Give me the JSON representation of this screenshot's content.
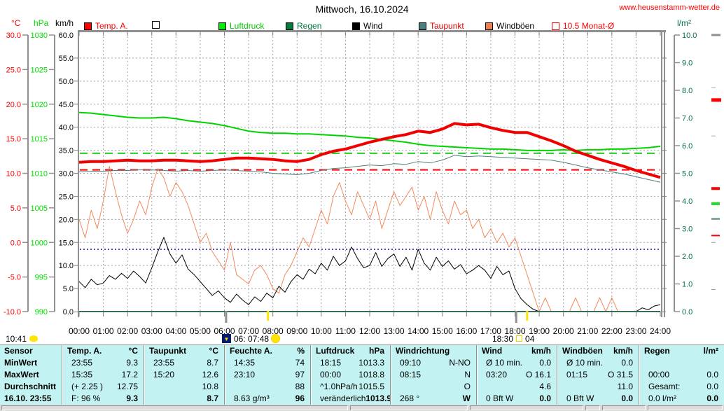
{
  "header": {
    "title": "Mittwoch, 16.10.2024",
    "url": "www.heusenstamm-wetter.de"
  },
  "legend": [
    {
      "label": "Temp. A.",
      "label_color": "#ff0000",
      "swatch_fill": "#ff0000",
      "swatch_border": "#000000"
    },
    {
      "label": "",
      "label_color": "#000000",
      "swatch_fill": "#ffffff",
      "swatch_border": "#000000"
    },
    {
      "label": "Luftdruck",
      "label_color": "#00cc00",
      "swatch_fill": "#00ee00",
      "swatch_border": "#000000"
    },
    {
      "label": "Regen",
      "label_color": "#007a3d",
      "swatch_fill": "#007a3d",
      "swatch_border": "#000000"
    },
    {
      "label": "Wind",
      "label_color": "#000000",
      "swatch_fill": "#000000",
      "swatch_border": "#000000"
    },
    {
      "label": "Taupunkt",
      "label_color": "#dd0000",
      "swatch_fill": "#4c7f7f",
      "swatch_border": "#000000"
    },
    {
      "label": "Windböen",
      "label_color": "#000000",
      "swatch_fill": "#f08050",
      "swatch_border": "#000000"
    },
    {
      "label": "10.5 Monat-Ø",
      "label_color": "#ff0000",
      "swatch_fill": "none",
      "swatch_border": "#ff0000"
    }
  ],
  "axes": {
    "celsius": {
      "unit": "°C",
      "color": "#ff0000",
      "min": -10,
      "max": 30,
      "tick_step": 5,
      "tick_labels": [
        "30.0",
        "25.0",
        "20.0",
        "15.0",
        "10.0",
        "5.0",
        "0.0",
        "-5.0",
        "-10.0"
      ]
    },
    "hpa": {
      "unit": "hPa",
      "color": "#00dd00",
      "min": 990,
      "max": 1030,
      "tick_step": 5,
      "tick_labels": [
        "1030",
        "1025",
        "1020",
        "1015",
        "1010",
        "1005",
        "1000",
        "995",
        "990"
      ]
    },
    "kmh": {
      "unit": "km/h",
      "color": "#000000",
      "min": 0,
      "max": 60,
      "tick_step": 5,
      "tick_labels": [
        "60.0",
        "55.0",
        "50.0",
        "45.0",
        "40.0",
        "35.0",
        "30.0",
        "25.0",
        "20.0",
        "15.0",
        "10.0",
        "5.0",
        "0.0"
      ]
    },
    "lm2": {
      "unit": "l/m²",
      "color": "#007050",
      "min": 0,
      "max": 10,
      "tick_step": 1,
      "tick_labels": [
        "10.0",
        "9.0",
        "8.0",
        "7.0",
        "6.0",
        "5.0",
        "4.0",
        "3.0",
        "2.0",
        "1.0",
        "0.0"
      ]
    },
    "time": {
      "tick_labels": [
        "00:00",
        "01:00",
        "02:00",
        "03:00",
        "04:00",
        "05:00",
        "06:00",
        "07:00",
        "08:00",
        "09:00",
        "10:00",
        "11:00",
        "12:00",
        "13:00",
        "14:00",
        "15:00",
        "16:00",
        "17:00",
        "18:00",
        "19:00",
        "20:00",
        "21:00",
        "22:00",
        "23:00",
        "24:00"
      ]
    }
  },
  "chart_data": {
    "type": "line",
    "title": "Mittwoch, 16.10.2024",
    "x_unit": "hours",
    "x_range": [
      0,
      24
    ],
    "grid": true,
    "series": [
      {
        "name": "Luftdruck",
        "axis": "hpa",
        "color": "#00d400",
        "width": 2,
        "step_h": 0.5,
        "values": [
          1018.8,
          1018.7,
          1018.5,
          1018.3,
          1018.1,
          1018.0,
          1018.0,
          1018.1,
          1017.9,
          1017.6,
          1017.4,
          1017.2,
          1016.9,
          1016.5,
          1016.1,
          1015.9,
          1015.8,
          1015.8,
          1015.7,
          1015.7,
          1015.6,
          1015.5,
          1015.4,
          1015.2,
          1015.1,
          1014.9,
          1014.7,
          1014.5,
          1014.2,
          1014.0,
          1013.9,
          1013.8,
          1013.7,
          1013.6,
          1013.5,
          1013.5,
          1013.4,
          1013.3,
          1013.3,
          1013.3,
          1013.4,
          1013.3,
          1013.4,
          1013.4,
          1013.5,
          1013.5,
          1013.6,
          1013.7,
          1013.9
        ]
      },
      {
        "name": "Windböen",
        "axis": "kmh",
        "color": "#f4895c",
        "width": 1,
        "step_h": 0.25,
        "values": [
          20,
          16,
          22,
          18,
          24,
          31.5,
          26,
          21,
          17,
          20,
          24,
          21,
          27,
          31,
          29,
          25,
          28,
          26,
          23,
          19,
          15,
          17,
          13,
          11,
          9,
          15,
          8,
          7,
          6,
          9,
          10,
          8,
          5,
          4,
          8,
          10,
          13,
          16,
          14,
          18,
          22,
          19,
          25,
          28,
          24,
          21,
          26,
          23,
          20,
          24,
          18,
          22,
          26,
          23,
          25,
          27,
          22,
          25,
          20,
          26,
          22,
          19,
          24,
          21,
          22,
          18,
          20,
          16,
          18,
          15,
          17,
          14,
          16,
          12,
          8,
          4,
          0,
          3,
          0,
          0,
          0,
          0,
          3,
          0,
          0,
          0,
          3,
          0,
          3,
          0,
          0,
          0,
          0,
          0,
          0,
          0,
          0
        ]
      },
      {
        "name": "Wind",
        "axis": "kmh",
        "color": "#000000",
        "width": 1,
        "step_h": 0.25,
        "values": [
          6.5,
          5.2,
          7,
          5.8,
          6.2,
          7.8,
          7,
          8.3,
          7.2,
          8.8,
          7.6,
          6.2,
          9.5,
          13,
          16.1,
          12.5,
          10.5,
          12.3,
          9.2,
          8,
          6.5,
          5,
          3.5,
          4.5,
          3,
          2,
          3.8,
          2.5,
          1.5,
          3.2,
          2.2,
          4,
          3,
          5.5,
          4.2,
          6.5,
          8,
          7,
          9.2,
          8.2,
          10.5,
          9,
          12,
          10,
          11,
          14,
          11.5,
          9.5,
          10,
          12.8,
          9.8,
          11.5,
          12.5,
          9.8,
          11.8,
          9,
          13.5,
          10.5,
          9,
          11.8,
          9.8,
          11,
          9.2,
          10.2,
          8.2,
          9,
          10,
          9,
          7.2,
          9.8,
          8,
          8.8,
          5,
          2.8,
          1.5,
          0.5,
          0,
          0,
          0,
          0,
          0,
          0,
          0,
          0,
          0,
          0,
          0,
          0,
          0,
          0,
          0,
          0,
          0,
          0.8,
          0.4,
          1.2,
          1.5
        ]
      },
      {
        "name": "Taupunkt",
        "axis": "celsius",
        "color": "#4c7f7f",
        "width": 1,
        "step_h": 0.5,
        "values": [
          10.2,
          10.3,
          10.3,
          10.4,
          10.4,
          10.5,
          10.5,
          10.4,
          10.3,
          10.4,
          10.3,
          10.4,
          10.5,
          10.4,
          10.3,
          10.2,
          10.0,
          9.9,
          9.8,
          10.0,
          10.4,
          10.7,
          10.8,
          11.0,
          11.2,
          11.1,
          11.4,
          11.3,
          11.7,
          11.5,
          11.9,
          12.6,
          12.4,
          12.5,
          12.4,
          12.3,
          12.2,
          12.1,
          12.0,
          11.9,
          11.6,
          11.2,
          10.8,
          10.5,
          10.2,
          9.9,
          9.5,
          9.1,
          8.7
        ]
      },
      {
        "name": "Regen",
        "axis": "lm2",
        "color": "#006838",
        "width": 2,
        "step_h": 24,
        "values": [
          0,
          0
        ]
      },
      {
        "name": "Temp. A.",
        "axis": "celsius",
        "color": "#f00000",
        "width": 4,
        "step_h": 0.5,
        "values": [
          11.6,
          11.7,
          11.7,
          11.8,
          11.9,
          11.8,
          11.8,
          11.9,
          11.9,
          11.8,
          11.7,
          11.8,
          12.0,
          12.2,
          12.2,
          12.1,
          12.0,
          11.8,
          11.7,
          12.0,
          12.7,
          13.2,
          13.5,
          14.0,
          14.5,
          14.9,
          15.3,
          15.6,
          16.1,
          15.9,
          16.4,
          17.2,
          17.0,
          17.1,
          16.6,
          16.2,
          15.9,
          15.9,
          15.3,
          14.7,
          14.0,
          13.2,
          12.6,
          12.0,
          11.5,
          11.0,
          10.4,
          9.9,
          9.4
        ]
      }
    ],
    "reference_lines": [
      {
        "axis": "celsius",
        "value": 10.5,
        "color": "#ff0000",
        "style": "dashed",
        "label": "10.5 Monat-Ø"
      },
      {
        "axis": "hpa",
        "value": 1012.9,
        "color": "#22cc22",
        "style": "dashed"
      },
      {
        "axis": "kmh",
        "value": 13.5,
        "color": "#2222cc",
        "style": "dotted"
      }
    ],
    "edge_markers": [
      {
        "color": "#909090",
        "v": 10.0,
        "len": 13,
        "th": 3
      },
      {
        "color": "#aaaaaa",
        "v": 8.1,
        "len": 6,
        "th": 1
      },
      {
        "color": "#ff0000",
        "v": 7.65,
        "len": 14,
        "th": 5
      },
      {
        "color": "#aaaaaa",
        "v": 6.35,
        "len": 6,
        "th": 1
      },
      {
        "color": "#ff0000",
        "v": 4.45,
        "len": 12,
        "th": 4
      },
      {
        "color": "#22dd22",
        "v": 3.9,
        "len": 12,
        "th": 4
      },
      {
        "color": "#4c7f7f",
        "v": 3.35,
        "len": 12,
        "th": 2
      },
      {
        "color": "#ff0000",
        "v": 2.75,
        "len": 12,
        "th": 2
      },
      {
        "color": "#999999",
        "v": 2.5,
        "len": 6,
        "th": 1
      },
      {
        "color": "#999999",
        "v": 0.8,
        "len": 6,
        "th": 1
      }
    ]
  },
  "day_markers": {
    "moonset_time": "10:41",
    "sunrise_label": "06: 07:48",
    "sunset_time": "18:30",
    "sunset_extra": "04",
    "grey_tick_hours": [
      6.07,
      18.05
    ],
    "yellow_tick_hours": [
      7.8,
      18.5
    ]
  },
  "table": {
    "row_labels": [
      "Sensor",
      "MinWert",
      "MaxWert",
      "Durchschnitt",
      "16.10. 23:55"
    ],
    "groups": [
      {
        "name": "Temp. A.",
        "unit": "°C",
        "rows": [
          [
            "23:55",
            "9.3"
          ],
          [
            "15:35",
            "17.2"
          ],
          [
            "(+ 2.25 )",
            "12.75"
          ],
          [
            "F: 96 %",
            "9.3"
          ]
        ]
      },
      {
        "name": "Taupunkt",
        "unit": "°C",
        "rows": [
          [
            "23:55",
            "8.7"
          ],
          [
            "15:20",
            "12.6"
          ],
          [
            "",
            "10.8"
          ],
          [
            "",
            "8.7"
          ]
        ]
      },
      {
        "name": "Feuchte A.",
        "unit": "%",
        "rows": [
          [
            "14:35",
            "74"
          ],
          [
            "23:10",
            "97"
          ],
          [
            "",
            "88"
          ],
          [
            "8.63 g/m³",
            "96"
          ]
        ]
      },
      {
        "name": "Luftdruck",
        "unit": "hPa",
        "rows": [
          [
            "18:15",
            "1013.3"
          ],
          [
            "00:00",
            "1018.8"
          ],
          [
            "^1.0hPa/h",
            "1015.5"
          ],
          [
            "veränderlich",
            "1013.9"
          ]
        ]
      },
      {
        "name": "Windrichtung",
        "unit": "",
        "rows": [
          [
            "09:10",
            "N-NO"
          ],
          [
            "08:15",
            "N"
          ],
          [
            "",
            "O"
          ],
          [
            "268 °",
            "W"
          ]
        ]
      },
      {
        "name": "Wind",
        "unit": "km/h",
        "rows": [
          [
            "Ø 10 min.",
            "0.0"
          ],
          [
            "03:20",
            "O 16.1"
          ],
          [
            "",
            "4.6"
          ],
          [
            "0 Bft W",
            "0.0"
          ]
        ]
      },
      {
        "name": "Windböen",
        "unit": "km/h",
        "rows": [
          [
            "Ø 10 min.",
            "0.0"
          ],
          [
            "01:15",
            "O 31.5"
          ],
          [
            "",
            "11.0"
          ],
          [
            "0 Bft W",
            "0.0"
          ]
        ]
      },
      {
        "name": "Regen",
        "unit": "l/m²",
        "rows": [
          [
            "",
            ""
          ],
          [
            "00:00",
            "0.0"
          ],
          [
            "Gesamt:",
            "0.0"
          ],
          [
            "0.0 l/m²",
            "0.0"
          ]
        ]
      }
    ]
  }
}
